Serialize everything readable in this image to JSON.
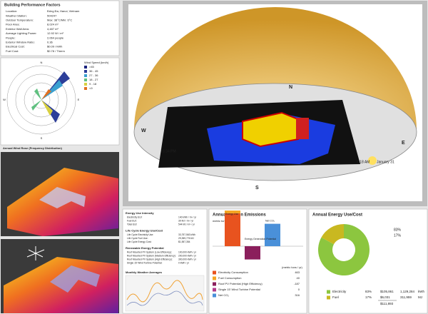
{
  "performance": {
    "title": "Building Performance Factors",
    "rows": [
      [
        "Location:",
        "Đống Đa, Hanoi, Vietnam"
      ],
      [
        "Weather Station:",
        "504247"
      ],
      [
        "Outdoor Temperature:",
        "Max: 38°C/Min: 6°C"
      ],
      [
        "Floor Area:",
        "8,024 m²"
      ],
      [
        "Exterior Wall Area:",
        "4,487 m²"
      ],
      [
        "Average Lighting Power:",
        "12.92 W / m²"
      ],
      [
        "People:",
        "2,064 people"
      ],
      [
        "Exterior Window Ratio:",
        "0.36"
      ],
      [
        "Electrical Cost:",
        "$0.09 / kWh"
      ],
      [
        "Fuel Cost:",
        "$0.78 / Therm"
      ]
    ]
  },
  "wind_rose": {
    "legend_title": "Wind Speed (km/h)",
    "legend": [
      ">45",
      "36 - 45",
      "27 - 36",
      "18 - 27",
      "9 - 18",
      "<9"
    ],
    "directions": [
      "N",
      "E",
      "S",
      "W"
    ],
    "caption": "Annual Wind Rose (Frequency Distribution)"
  },
  "sun_path": {
    "compass": [
      "N",
      "E",
      "S",
      "W"
    ],
    "sunset": "5:34 PM",
    "sunrise": "5:18 AM",
    "date": "January 31"
  },
  "intensity": {
    "sections": [
      {
        "title": "Energy Use Intensity",
        "rows": [
          [
            "Electricity EUI:",
            "140 kWh / m² / yr"
          ],
          [
            "Fuel EUI:",
            "39 MJ / m² / yr"
          ],
          [
            "Total EUI:",
            "544 MJ / m² / yr"
          ]
        ]
      },
      {
        "title": "Life Cycle Energy Use/Cost",
        "rows": [
          [
            "Life Cycle Electricity Use:",
            "33,757,563 kWh"
          ],
          [
            "Life Cycle Fuel Use:",
            "29,359,776 MJ"
          ],
          [
            "Life Cycle Energy Cost:",
            "$1,557,354"
          ]
        ]
      },
      {
        "title": "Renewable Energy Potential",
        "rows": [
          [
            "Roof Mounted PV System (Low Efficiency):",
            "100,000 kWh / yr"
          ],
          [
            "Roof Mounted PV System (Medium Efficiency):",
            "200,000 kWh / yr"
          ],
          [
            "Roof Mounted PV System (High Efficiency):",
            "300,000 kWh / yr"
          ],
          [
            "Single 15' Wind Turbine Potential:",
            "0 kWh / yr"
          ]
        ]
      }
    ],
    "weather_title": "Monthly Weather Averages"
  },
  "carbon": {
    "title": "Annual Carbon Emissions",
    "unit": "metric tons / yr",
    "table_unit": "(metric tons / yr)",
    "bar_labels": [
      "Energy Use",
      "Energy Generation Potential",
      "Net CO₂"
    ],
    "items": [
      {
        "name": "Electricity Consumption",
        "value": 463,
        "color": "#e8531f"
      },
      {
        "name": "Fuel Consumption",
        "value": 40,
        "color": "#f5a623"
      },
      {
        "name": "Roof PV Potential (High Efficiency)",
        "value": -187,
        "color": "#8b1f5c"
      },
      {
        "name": "Single 15' Wind Turbine Potential",
        "value": 0,
        "color": "#b23a8a"
      },
      {
        "name": "Net CO₂",
        "value": 316,
        "color": "#4a90d9"
      }
    ]
  },
  "energy_cost": {
    "title": "Annual Energy Use/Cost",
    "slices": [
      {
        "name": "Electricity",
        "value": 83,
        "value_label": "83%",
        "cost": "$105,861",
        "use": "1,129,284",
        "unit": "kWh",
        "color": "#8cc63f"
      },
      {
        "name": "Fuel",
        "value": 17,
        "value_label": "17%",
        "cost": "$6,031",
        "use": "311,959",
        "unit": "MJ",
        "color": "#c9b820"
      }
    ],
    "total": "$111,893"
  }
}
